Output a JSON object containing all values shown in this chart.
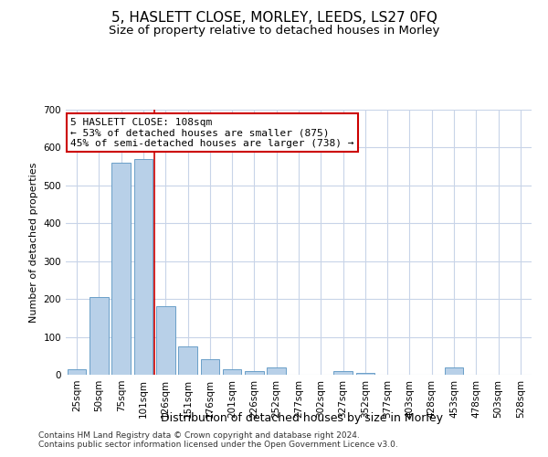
{
  "title": "5, HASLETT CLOSE, MORLEY, LEEDS, LS27 0FQ",
  "subtitle": "Size of property relative to detached houses in Morley",
  "xlabel": "Distribution of detached houses by size in Morley",
  "ylabel": "Number of detached properties",
  "bar_labels": [
    "25sqm",
    "50sqm",
    "75sqm",
    "101sqm",
    "126sqm",
    "151sqm",
    "176sqm",
    "201sqm",
    "226sqm",
    "252sqm",
    "277sqm",
    "302sqm",
    "327sqm",
    "352sqm",
    "377sqm",
    "403sqm",
    "428sqm",
    "453sqm",
    "478sqm",
    "503sqm",
    "528sqm"
  ],
  "bar_values": [
    15,
    205,
    560,
    570,
    180,
    75,
    40,
    15,
    10,
    20,
    0,
    0,
    10,
    5,
    0,
    0,
    0,
    20,
    0,
    0,
    0
  ],
  "bar_color": "#b8d0e8",
  "bar_edge_color": "#6a9fc8",
  "vline_x": 3.5,
  "vline_color": "#cc0000",
  "annotation_line1": "5 HASLETT CLOSE: 108sqm",
  "annotation_line2": "← 53% of detached houses are smaller (875)",
  "annotation_line3": "45% of semi-detached houses are larger (738) →",
  "annotation_box_color": "#ffffff",
  "annotation_box_edge": "#cc0000",
  "ylim": [
    0,
    700
  ],
  "yticks": [
    0,
    100,
    200,
    300,
    400,
    500,
    600,
    700
  ],
  "background_color": "#ffffff",
  "grid_color": "#c8d4e8",
  "footer_line1": "Contains HM Land Registry data © Crown copyright and database right 2024.",
  "footer_line2": "Contains public sector information licensed under the Open Government Licence v3.0.",
  "title_fontsize": 11,
  "subtitle_fontsize": 9.5,
  "xlabel_fontsize": 9,
  "ylabel_fontsize": 8,
  "tick_fontsize": 7.5,
  "annot_fontsize": 8,
  "footer_fontsize": 6.5
}
